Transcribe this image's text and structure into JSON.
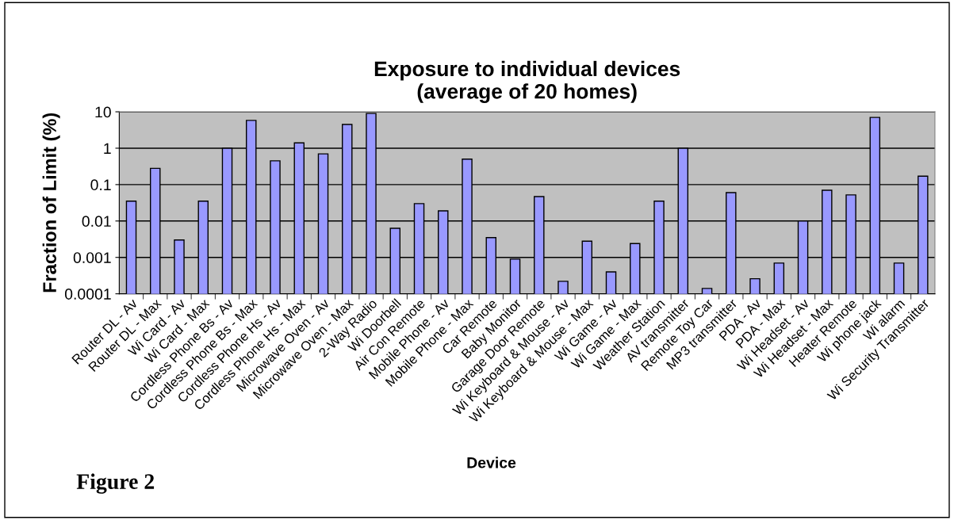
{
  "chart_data": {
    "type": "bar",
    "title": "Exposure to individual devices\n(average of 20 homes)",
    "xlabel": "Device",
    "ylabel": "Fraction of Limit (%)",
    "categories": [
      "Router DL - Av",
      "Router DL - Max",
      "Wi Card - Av",
      "Wi Card - Max",
      "Cordless Phone Bs - Av",
      "Cordless Phone Bs - Max",
      "Cordless Phone Hs - Av",
      "Cordless Phone Hs - Max",
      "Microwave Oven - Av",
      "Microwave Oven - Max",
      "2-Way Radio",
      "Wi Doorbell",
      "Air Con Remote",
      "Mobile Phone - Av",
      "Mobile Phone - Max",
      "Car Remote",
      "Baby Monitor",
      "Garage Door Remote",
      "Wi Keyboard & Mouse - Av",
      "Wi Keyboard & Mouse - Max",
      "Wi Game - Av",
      "Wi Game - Max",
      "Weather Station",
      "AV transmitter",
      "Remote Toy Car",
      "MP3 transmitter",
      "PDA - Av",
      "PDA - Max",
      "Wi Headset - Av",
      "Wi Headset - Max",
      "Heater Remote",
      "Wi phone jack",
      "Wi alarm",
      "Wi Security Transmitter"
    ],
    "values": [
      0.035,
      0.28,
      0.003,
      0.035,
      1.0,
      5.8,
      0.45,
      1.4,
      0.7,
      4.5,
      9,
      0.0063,
      0.03,
      0.019,
      0.5,
      0.0035,
      0.0009,
      0.047,
      0.00022,
      0.0028,
      0.0004,
      0.0024,
      0.035,
      1.0,
      0.00014,
      0.06,
      0.00026,
      0.0007,
      0.01,
      0.07,
      0.052,
      7,
      0.0007,
      0.17
    ],
    "color": "#9999ff",
    "log": "y",
    "ylim": [
      0.0001,
      10
    ],
    "yticks": [
      0.0001,
      0.001,
      0.01,
      0.1,
      1,
      10
    ],
    "grid": "y",
    "legend": false,
    "annotations": [
      "Figure 2"
    ]
  }
}
